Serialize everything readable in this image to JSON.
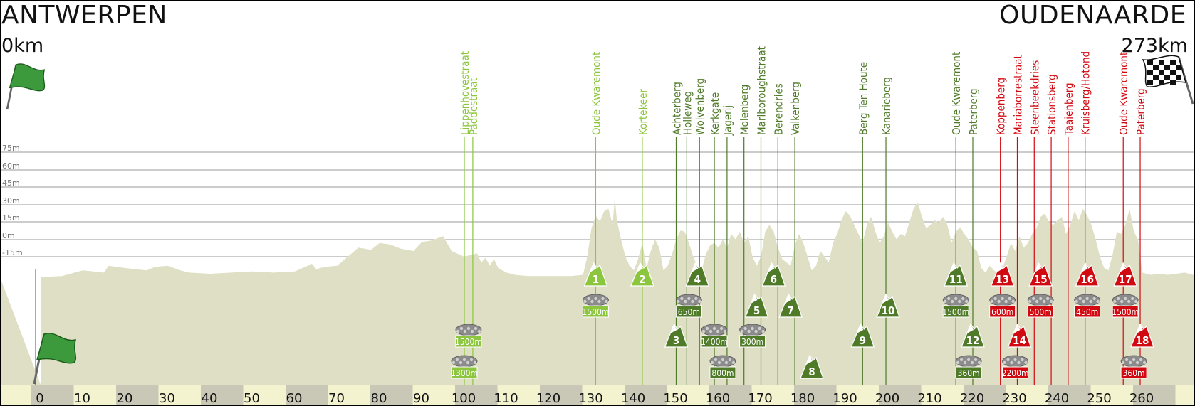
{
  "header": {
    "start_city": "ANTWERPEN",
    "finish_city": "OUDENAARDE",
    "start_km": "0km",
    "finish_km": "273km"
  },
  "colors": {
    "profile": "#dedfc4",
    "axis_band": "#f4f3cf",
    "axis_alt": "#c9c7b6",
    "light_green": "#8cc63e",
    "dark_green": "#4f7a28",
    "red": "#d10a11",
    "cobble_grey": "#8b8b8b"
  },
  "chart_data": {
    "type": "area",
    "title": "",
    "xlabel": "",
    "ylabel": "",
    "x_unit": "km",
    "xlim": [
      0,
      273
    ],
    "x_ticks": [
      0,
      10,
      20,
      30,
      40,
      50,
      60,
      70,
      80,
      90,
      100,
      110,
      120,
      130,
      140,
      150,
      160,
      170,
      180,
      190,
      200,
      210,
      220,
      230,
      240,
      250,
      260
    ],
    "y_tick_labels": [
      "75m",
      "60m",
      "45m",
      "30m",
      "15m",
      "0m",
      "-15m"
    ],
    "grid": true,
    "elevation_profile": {
      "x": [
        0,
        5,
        8,
        10,
        15,
        16,
        20,
        25,
        27,
        30,
        33,
        35,
        40,
        45,
        50,
        55,
        60,
        63,
        64,
        65,
        67,
        70,
        75,
        78,
        80,
        82,
        83,
        85,
        88,
        90,
        92,
        95,
        97,
        100,
        103,
        104,
        105,
        106,
        107,
        108,
        110,
        112,
        115,
        120,
        125,
        128,
        129,
        130,
        131,
        132,
        133,
        134,
        135,
        135.5,
        136,
        137,
        138,
        139,
        140,
        141,
        142,
        143,
        144,
        145,
        146,
        147,
        148,
        149,
        150,
        151,
        152,
        153,
        154,
        155,
        156,
        157,
        158,
        159,
        160,
        161,
        162,
        163,
        164,
        165,
        166,
        167,
        168,
        169,
        170,
        171,
        172,
        173,
        174,
        175,
        176,
        177,
        178,
        179,
        180,
        181,
        182,
        183,
        184,
        185,
        186,
        187,
        188,
        189,
        190,
        191,
        192,
        193,
        194,
        195,
        196,
        197,
        198,
        199,
        200,
        201,
        202,
        203,
        204,
        205,
        206,
        207,
        208,
        209,
        210,
        211,
        212,
        213,
        214,
        215,
        216,
        217,
        218,
        219,
        220,
        221,
        222,
        223,
        224,
        225,
        226,
        227,
        228,
        229,
        230,
        231,
        232,
        233,
        234,
        235,
        236,
        237,
        238,
        239,
        240,
        241,
        242,
        243,
        244,
        245,
        246,
        247,
        248,
        249,
        250,
        251,
        252,
        253,
        254,
        255,
        256,
        257,
        258,
        259,
        260,
        262,
        264,
        266,
        268,
        270,
        273
      ],
      "y": [
        2,
        3,
        6,
        8,
        6,
        12,
        10,
        8,
        11,
        12,
        8,
        6,
        5,
        6,
        7,
        6,
        7,
        12,
        14,
        9,
        11,
        12,
        28,
        26,
        32,
        31,
        30,
        27,
        25,
        33,
        34,
        38,
        25,
        20,
        23,
        15,
        19,
        12,
        18,
        10,
        6,
        4,
        3,
        3,
        3,
        4,
        20,
        45,
        56,
        51,
        60,
        62,
        48,
        72,
        52,
        35,
        20,
        12,
        8,
        18,
        32,
        10,
        25,
        35,
        28,
        8,
        12,
        22,
        35,
        43,
        42,
        32,
        20,
        12,
        8,
        22,
        30,
        32,
        28,
        35,
        28,
        40,
        35,
        42,
        32,
        38,
        20,
        12,
        20,
        42,
        48,
        42,
        28,
        18,
        15,
        12,
        30,
        40,
        32,
        20,
        8,
        12,
        25,
        20,
        15,
        32,
        40,
        52,
        60,
        56,
        48,
        40,
        32,
        48,
        55,
        42,
        32,
        38,
        50,
        42,
        35,
        40,
        38,
        50,
        62,
        68,
        55,
        45,
        48,
        52,
        50,
        55,
        48,
        32,
        42,
        46,
        40,
        35,
        28,
        25,
        10,
        6,
        12,
        8,
        5,
        10,
        20,
        32,
        25,
        38,
        28,
        32,
        40,
        45,
        55,
        58,
        50,
        48,
        52,
        55,
        40,
        48,
        60,
        52,
        62,
        56,
        48,
        35,
        20,
        10,
        8,
        22,
        42,
        40,
        48,
        62,
        42,
        35,
        6,
        4,
        5,
        4,
        5,
        6,
        3
      ]
    },
    "climbs": [
      {
        "id": "1",
        "name": "Oude Kwaremont",
        "km": 131,
        "marker_x": 131,
        "row": 0,
        "class": "light"
      },
      {
        "id": "2",
        "name": "Kortekeer",
        "km": 142,
        "marker_x": 142,
        "row": 0,
        "class": "light"
      },
      {
        "id": "3",
        "name": "Achterberg",
        "km": 150,
        "marker_x": 150,
        "row": 2,
        "class": "dark"
      },
      {
        "id": "4",
        "name": "Wolvenberg",
        "km": 155,
        "marker_x": 155,
        "row": 0,
        "class": "dark"
      },
      {
        "id": "5",
        "name": "Molenberg",
        "km": 169,
        "marker_x": 169,
        "row": 1,
        "class": "dark"
      },
      {
        "id": "6",
        "name": "Marlboroughstraat",
        "km": 173,
        "marker_x": 173,
        "row": 0,
        "class": "dark"
      },
      {
        "id": "7",
        "name": "Berendries",
        "km": 177,
        "marker_x": 177,
        "row": 1,
        "class": "dark"
      },
      {
        "id": "8",
        "name": "Valkenberg",
        "km": 182,
        "marker_x": 182,
        "row": 3,
        "class": "dark"
      },
      {
        "id": "9",
        "name": "Berg Ten Houte",
        "km": 194,
        "marker_x": 194,
        "row": 2,
        "class": "dark"
      },
      {
        "id": "10",
        "name": "Kanarieberg",
        "km": 200,
        "marker_x": 200,
        "row": 1,
        "class": "dark"
      },
      {
        "id": "11",
        "name": "Oude Kwaremont",
        "km": 216,
        "marker_x": 216,
        "row": 0,
        "class": "dark"
      },
      {
        "id": "12",
        "name": "Paterberg",
        "km": 220,
        "marker_x": 220,
        "row": 2,
        "class": "dark"
      },
      {
        "id": "13",
        "name": "Koppenberg",
        "km": 227,
        "marker_x": 227,
        "row": 0,
        "class": "red"
      },
      {
        "id": "14",
        "name": "Steenbeekdries",
        "km": 233,
        "marker_x": 231,
        "row": 2,
        "class": "red"
      },
      {
        "id": "15",
        "name": "Taaienberg",
        "km": 236,
        "marker_x": 236,
        "row": 0,
        "class": "red"
      },
      {
        "id": "16",
        "name": "Kruisberg/Hotond",
        "km": 247,
        "marker_x": 247,
        "row": 0,
        "class": "red"
      },
      {
        "id": "17",
        "name": "Oude Kwaremont",
        "km": 256,
        "marker_x": 256,
        "row": 0,
        "class": "red"
      },
      {
        "id": "18",
        "name": "Paterberg",
        "km": 260,
        "marker_x": 260,
        "row": 2,
        "class": "red"
      }
    ],
    "cobbles": [
      {
        "name": "Lippenhovestraat",
        "km": 100,
        "marker_x": 100,
        "row": 3,
        "length": "1300m",
        "class": "light"
      },
      {
        "name": "Paddestraat",
        "km": 102,
        "marker_x": 101,
        "row": 2,
        "length": "1500m",
        "class": "light"
      },
      {
        "name": "Oude Kwaremont",
        "km": 131,
        "marker_x": 131,
        "row": 1,
        "length": "1500m",
        "class": "light"
      },
      {
        "name": "Holleweg",
        "km": 152,
        "marker_x": 153,
        "row": 1,
        "length": "650m",
        "class": "dark"
      },
      {
        "name": "Kerkgate",
        "km": 158,
        "marker_x": 159,
        "row": 2,
        "length": "1400m",
        "class": "dark"
      },
      {
        "name": "Jagerij",
        "km": 162,
        "marker_x": 161,
        "row": 3,
        "length": "800m",
        "class": "dark"
      },
      {
        "name": "Molenberg",
        "km": 169,
        "marker_x": 168,
        "row": 2,
        "length": "300m",
        "class": "dark"
      },
      {
        "name": "Oude Kwaremont",
        "km": 216,
        "marker_x": 216,
        "row": 1,
        "length": "1500m",
        "class": "dark"
      },
      {
        "name": "Paterberg",
        "km": 220,
        "marker_x": 219,
        "row": 3,
        "length": "360m",
        "class": "dark"
      },
      {
        "name": "Mariaborrestraat",
        "km": 231,
        "marker_x": 227,
        "row": 1,
        "length": "600m",
        "class": "red"
      },
      {
        "name": "Stationsberg",
        "km": 234,
        "marker_x": 230,
        "row": 3,
        "length": "2200m",
        "class": "red"
      },
      {
        "name": "Taaienberg",
        "km": 235,
        "marker_x": 236,
        "row": 1,
        "length": "500m",
        "class": "red"
      },
      {
        "name": "Kruisberg/Hotond",
        "km": 247,
        "marker_x": 247,
        "row": 1,
        "length": "450m",
        "class": "red"
      },
      {
        "name": "Oude Kwaremont",
        "km": 256,
        "marker_x": 256,
        "row": 1,
        "length": "1500m",
        "class": "red"
      },
      {
        "name": "Paterberg",
        "km": 260,
        "marker_x": 258,
        "row": 3,
        "length": "360m",
        "class": "red"
      }
    ],
    "label_columns": [
      {
        "name": "Lippenhovestraat",
        "km": 100,
        "class": "light"
      },
      {
        "name": "Paddestraat",
        "km": 102,
        "class": "light"
      },
      {
        "name": "Oude Kwaremont",
        "km": 131,
        "class": "light"
      },
      {
        "name": "Kortekeer",
        "km": 142,
        "class": "light"
      },
      {
        "name": "Achterberg",
        "km": 150,
        "class": "dark"
      },
      {
        "name": "Holleweg",
        "km": 152.5,
        "class": "dark"
      },
      {
        "name": "Wolvenberg",
        "km": 155.5,
        "class": "dark"
      },
      {
        "name": "Kerkgate",
        "km": 159,
        "class": "dark"
      },
      {
        "name": "Jagerij",
        "km": 162,
        "class": "dark"
      },
      {
        "name": "Molenberg",
        "km": 166,
        "class": "dark"
      },
      {
        "name": "Marlboroughstraat",
        "km": 170,
        "class": "dark"
      },
      {
        "name": "Berendries",
        "km": 174,
        "class": "dark"
      },
      {
        "name": "Valkenberg",
        "km": 178,
        "class": "dark"
      },
      {
        "name": "Berg Ten Houte",
        "km": 194,
        "class": "dark"
      },
      {
        "name": "Kanarieberg",
        "km": 199.5,
        "class": "dark"
      },
      {
        "name": "Oude Kwaremont",
        "km": 216,
        "class": "dark"
      },
      {
        "name": "Paterberg",
        "km": 220,
        "class": "dark"
      },
      {
        "name": "Koppenberg",
        "km": 226.5,
        "class": "red"
      },
      {
        "name": "Mariaborrestraat",
        "km": 230.5,
        "class": "red"
      },
      {
        "name": "Steenbeekdries",
        "km": 234.5,
        "class": "red"
      },
      {
        "name": "Stationsberg",
        "km": 238.5,
        "class": "red"
      },
      {
        "name": "Taaienberg",
        "km": 242.5,
        "class": "red"
      },
      {
        "name": "Kruisberg/Hotond",
        "km": 246.5,
        "class": "red"
      },
      {
        "name": "Oude Kwaremont",
        "km": 255.5,
        "class": "red"
      },
      {
        "name": "Paterberg",
        "km": 259.5,
        "class": "red"
      }
    ]
  }
}
